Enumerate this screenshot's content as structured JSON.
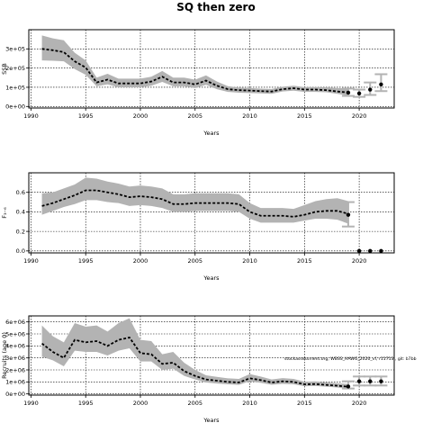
{
  "figure": {
    "title": "SQ then zero",
    "annotation": "stockassessment.org, WBSS_HAWG_2020_vf, r11713 , git: b7bb"
  },
  "chart_data": [
    {
      "type": "line",
      "name": "ssb",
      "ylabel": "SSB",
      "xlabel": "Years",
      "xlim": [
        1989.8,
        2023.2
      ],
      "ylim": [
        -8000,
        400000
      ],
      "x_ticks": [
        1990,
        1995,
        2000,
        2005,
        2010,
        2015,
        2020
      ],
      "y_ticks": [
        0,
        100000,
        200000,
        300000
      ],
      "y_tick_labels": [
        "0e+00",
        "1e+05",
        "2e+05",
        "3e+05"
      ],
      "grid": true,
      "history": {
        "years": [
          1991,
          1992,
          1993,
          1994,
          1995,
          1996,
          1997,
          1998,
          1999,
          2000,
          2001,
          2002,
          2003,
          2004,
          2005,
          2006,
          2007,
          2008,
          2009,
          2010,
          2011,
          2012,
          2013,
          2014,
          2015,
          2016,
          2017,
          2018,
          2019
        ],
        "estimate": [
          300000,
          293000,
          283000,
          235000,
          203000,
          125000,
          140000,
          120000,
          120000,
          120000,
          130000,
          155000,
          125000,
          125000,
          115000,
          135000,
          108000,
          90000,
          85000,
          83000,
          80000,
          78000,
          90000,
          95000,
          88000,
          88000,
          85000,
          78000,
          73000
        ],
        "lower": [
          240000,
          238000,
          235000,
          195000,
          165000,
          105000,
          115000,
          100000,
          100000,
          100000,
          108000,
          128000,
          105000,
          105000,
          96000,
          113000,
          90000,
          76000,
          72000,
          70000,
          68000,
          66000,
          78000,
          82000,
          76000,
          76000,
          74000,
          66000,
          56000
        ],
        "upper": [
          370000,
          355000,
          345000,
          280000,
          240000,
          150000,
          170000,
          145000,
          145000,
          145000,
          155000,
          185000,
          150000,
          150000,
          140000,
          162000,
          130000,
          106000,
          98000,
          96000,
          93000,
          91000,
          103000,
          108000,
          101000,
          101000,
          100000,
          96000,
          94000
        ]
      },
      "forecast": {
        "years": [
          2019,
          2020,
          2021,
          2022
        ],
        "median": [
          72000,
          68000,
          88000,
          115000
        ],
        "lower": [
          55000,
          50000,
          60000,
          80000
        ],
        "upper": [
          93000,
          88000,
          125000,
          168000
        ]
      }
    },
    {
      "type": "line",
      "name": "fbar",
      "ylabel": "F₃₋₆",
      "xlabel": "Years",
      "xlim": [
        1989.8,
        2023.2
      ],
      "ylim": [
        -0.02,
        0.8
      ],
      "x_ticks": [
        1990,
        1995,
        2000,
        2005,
        2010,
        2015,
        2020
      ],
      "y_ticks": [
        0.0,
        0.2,
        0.4,
        0.6
      ],
      "y_tick_labels": [
        "0.0",
        "0.2",
        "0.4",
        "0.6"
      ],
      "grid": true,
      "history": {
        "years": [
          1991,
          1992,
          1993,
          1994,
          1995,
          1996,
          1997,
          1998,
          1999,
          2000,
          2001,
          2002,
          2003,
          2004,
          2005,
          2006,
          2007,
          2008,
          2009,
          2010,
          2011,
          2012,
          2013,
          2014,
          2015,
          2016,
          2017,
          2018,
          2019
        ],
        "estimate": [
          0.46,
          0.49,
          0.53,
          0.57,
          0.62,
          0.62,
          0.6,
          0.58,
          0.55,
          0.56,
          0.55,
          0.53,
          0.48,
          0.48,
          0.49,
          0.49,
          0.49,
          0.49,
          0.48,
          0.4,
          0.36,
          0.36,
          0.36,
          0.35,
          0.37,
          0.4,
          0.41,
          0.41,
          0.38
        ],
        "lower": [
          0.37,
          0.41,
          0.45,
          0.48,
          0.52,
          0.52,
          0.5,
          0.49,
          0.46,
          0.47,
          0.46,
          0.44,
          0.4,
          0.4,
          0.41,
          0.41,
          0.41,
          0.41,
          0.4,
          0.33,
          0.29,
          0.29,
          0.29,
          0.29,
          0.31,
          0.33,
          0.33,
          0.32,
          0.28
        ],
        "upper": [
          0.59,
          0.6,
          0.64,
          0.68,
          0.75,
          0.74,
          0.71,
          0.69,
          0.66,
          0.67,
          0.66,
          0.64,
          0.58,
          0.58,
          0.59,
          0.59,
          0.59,
          0.59,
          0.58,
          0.49,
          0.44,
          0.44,
          0.44,
          0.43,
          0.47,
          0.51,
          0.53,
          0.54,
          0.51
        ]
      },
      "forecast": {
        "years": [
          2019,
          2020,
          2021,
          2022
        ],
        "median": [
          0.37,
          0.0,
          0.0,
          0.0
        ],
        "lower": [
          0.25,
          0.0,
          0.0,
          0.0
        ],
        "upper": [
          0.5,
          0.0,
          0.0,
          0.0
        ]
      }
    },
    {
      "type": "line",
      "name": "recruitment",
      "ylabel": "Recruits (age 0)",
      "xlabel": "Years",
      "xlim": [
        1989.8,
        2023.2
      ],
      "ylim": [
        -100000,
        6500000
      ],
      "x_ticks": [
        1990,
        1995,
        2000,
        2005,
        2010,
        2015,
        2020
      ],
      "y_ticks": [
        0,
        1000000,
        2000000,
        3000000,
        4000000,
        5000000,
        6000000
      ],
      "y_tick_labels": [
        "0e+00",
        "1e+06",
        "2e+06",
        "3e+06",
        "4e+06",
        "5e+06",
        "6e+06"
      ],
      "grid": true,
      "history": {
        "years": [
          1991,
          1992,
          1993,
          1994,
          1995,
          1996,
          1997,
          1998,
          1999,
          2000,
          2001,
          2002,
          2003,
          2004,
          2005,
          2006,
          2007,
          2008,
          2009,
          2010,
          2011,
          2012,
          2013,
          2014,
          2015,
          2016,
          2017,
          2018,
          2019
        ],
        "estimate": [
          4200000,
          3500000,
          3000000,
          4500000,
          4300000,
          4400000,
          4000000,
          4500000,
          4700000,
          3400000,
          3300000,
          2500000,
          2600000,
          1900000,
          1500000,
          1200000,
          1100000,
          1000000,
          950000,
          1300000,
          1150000,
          950000,
          1050000,
          1000000,
          800000,
          820000,
          750000,
          680000,
          600000
        ],
        "lower": [
          3100000,
          2800000,
          2300000,
          3600000,
          3500000,
          3500000,
          3200000,
          3600000,
          3800000,
          2700000,
          2700000,
          2000000,
          2100000,
          1500000,
          1200000,
          950000,
          870000,
          800000,
          750000,
          1050000,
          920000,
          760000,
          840000,
          800000,
          640000,
          660000,
          600000,
          540000,
          420000
        ],
        "upper": [
          5700000,
          4800000,
          4300000,
          5900000,
          5600000,
          5700000,
          5200000,
          5900000,
          6300000,
          4500000,
          4400000,
          3300000,
          3500000,
          2600000,
          2000000,
          1550000,
          1420000,
          1300000,
          1250000,
          1650000,
          1450000,
          1200000,
          1320000,
          1250000,
          1020000,
          1040000,
          960000,
          880000,
          830000
        ]
      },
      "forecast": {
        "years": [
          2019,
          2020,
          2021,
          2022
        ],
        "median": [
          620000,
          1050000,
          1050000,
          1050000
        ],
        "lower": [
          450000,
          700000,
          700000,
          700000
        ],
        "upper": [
          1050000,
          1450000,
          1450000,
          1450000
        ]
      }
    }
  ]
}
